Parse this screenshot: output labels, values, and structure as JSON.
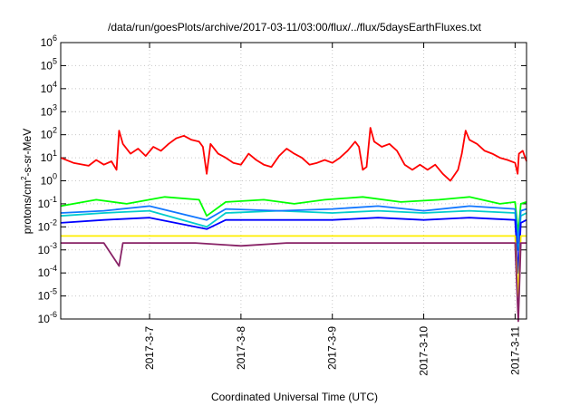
{
  "chart_data": {
    "type": "line",
    "title": "/data/run/goesPlots/archive/2017-03-11/03:00/flux/../flux/5daysEarthFluxes.txt",
    "xlabel": "Coordinated Universal Time (UTC)",
    "ylabel_parts": {
      "pre": "protons/cm",
      "sup": "2",
      "post": "-s-sr-MeV"
    },
    "y_scale": "log",
    "ylim": [
      1e-06,
      1000000.0
    ],
    "xlim": [
      "2017-03-06T00:40",
      "2017-03-11T03:00"
    ],
    "grid": true,
    "legend": "none",
    "x_ticks": [
      {
        "date": "2017-03-07",
        "label": "2017-3-7"
      },
      {
        "date": "2017-03-08",
        "label": "2017-3-8"
      },
      {
        "date": "2017-03-09",
        "label": "2017-3-9"
      },
      {
        "date": "2017-03-10",
        "label": "2017-3-10"
      },
      {
        "date": "2017-03-11",
        "label": "2017-3-11"
      }
    ],
    "y_ticks": [
      {
        "value": 1e-06,
        "base": "10",
        "exp": "-6"
      },
      {
        "value": 1e-05,
        "base": "10",
        "exp": "-5"
      },
      {
        "value": 0.0001,
        "base": "10",
        "exp": "-4"
      },
      {
        "value": 0.001,
        "base": "10",
        "exp": "-3"
      },
      {
        "value": 0.01,
        "base": "10",
        "exp": "-2"
      },
      {
        "value": 0.1,
        "base": "10",
        "exp": "-1"
      },
      {
        "value": 1,
        "base": "10",
        "exp": "0"
      },
      {
        "value": 10,
        "base": "10",
        "exp": "1"
      },
      {
        "value": 100,
        "base": "10",
        "exp": "2"
      },
      {
        "value": 1000,
        "base": "10",
        "exp": "3"
      },
      {
        "value": 10000,
        "base": "10",
        "exp": "4"
      },
      {
        "value": 100000,
        "base": "10",
        "exp": "5"
      },
      {
        "value": 1000000,
        "base": "10",
        "exp": "6"
      }
    ],
    "series": [
      {
        "color": "#ff0000",
        "points": [
          [
            "2017-03-06T00:40",
            10
          ],
          [
            "2017-03-06T04:00",
            6
          ],
          [
            "2017-03-06T08:00",
            4.5
          ],
          [
            "2017-03-06T10:00",
            8
          ],
          [
            "2017-03-06T12:00",
            5
          ],
          [
            "2017-03-06T14:00",
            7
          ],
          [
            "2017-03-06T15:20",
            3
          ],
          [
            "2017-03-06T16:00",
            150
          ],
          [
            "2017-03-06T17:00",
            40
          ],
          [
            "2017-03-06T19:00",
            15
          ],
          [
            "2017-03-06T21:00",
            25
          ],
          [
            "2017-03-06T23:00",
            12
          ],
          [
            "2017-03-07T01:00",
            30
          ],
          [
            "2017-03-07T03:00",
            20
          ],
          [
            "2017-03-07T05:00",
            40
          ],
          [
            "2017-03-07T07:00",
            70
          ],
          [
            "2017-03-07T09:00",
            90
          ],
          [
            "2017-03-07T11:00",
            60
          ],
          [
            "2017-03-07T13:00",
            50
          ],
          [
            "2017-03-07T14:00",
            30
          ],
          [
            "2017-03-07T15:00",
            2
          ],
          [
            "2017-03-07T16:00",
            40
          ],
          [
            "2017-03-07T18:00",
            15
          ],
          [
            "2017-03-07T20:00",
            10
          ],
          [
            "2017-03-07T22:00",
            6
          ],
          [
            "2017-03-08T00:00",
            5
          ],
          [
            "2017-03-08T02:00",
            15
          ],
          [
            "2017-03-08T04:00",
            8
          ],
          [
            "2017-03-08T06:00",
            5
          ],
          [
            "2017-03-08T08:00",
            4
          ],
          [
            "2017-03-08T10:00",
            12
          ],
          [
            "2017-03-08T12:00",
            25
          ],
          [
            "2017-03-08T14:00",
            15
          ],
          [
            "2017-03-08T16:00",
            10
          ],
          [
            "2017-03-08T18:00",
            5
          ],
          [
            "2017-03-08T20:00",
            6
          ],
          [
            "2017-03-08T22:00",
            8
          ],
          [
            "2017-03-09T00:00",
            6
          ],
          [
            "2017-03-09T02:00",
            10
          ],
          [
            "2017-03-09T04:00",
            20
          ],
          [
            "2017-03-09T06:00",
            50
          ],
          [
            "2017-03-09T07:00",
            30
          ],
          [
            "2017-03-09T08:00",
            3
          ],
          [
            "2017-03-09T09:00",
            4
          ],
          [
            "2017-03-09T10:00",
            200
          ],
          [
            "2017-03-09T11:00",
            50
          ],
          [
            "2017-03-09T13:00",
            30
          ],
          [
            "2017-03-09T15:00",
            40
          ],
          [
            "2017-03-09T17:00",
            20
          ],
          [
            "2017-03-09T19:00",
            5
          ],
          [
            "2017-03-09T21:00",
            3
          ],
          [
            "2017-03-09T23:00",
            5
          ],
          [
            "2017-03-10T01:00",
            3
          ],
          [
            "2017-03-10T03:00",
            5
          ],
          [
            "2017-03-10T05:00",
            2
          ],
          [
            "2017-03-10T07:00",
            1
          ],
          [
            "2017-03-10T09:00",
            3
          ],
          [
            "2017-03-10T10:00",
            15
          ],
          [
            "2017-03-10T11:00",
            150
          ],
          [
            "2017-03-10T12:00",
            60
          ],
          [
            "2017-03-10T14:00",
            40
          ],
          [
            "2017-03-10T16:00",
            20
          ],
          [
            "2017-03-10T18:00",
            15
          ],
          [
            "2017-03-10T20:00",
            10
          ],
          [
            "2017-03-10T22:00",
            8
          ],
          [
            "2017-03-11T00:00",
            6
          ],
          [
            "2017-03-11T00:40",
            2
          ],
          [
            "2017-03-11T01:00",
            15
          ],
          [
            "2017-03-11T02:00",
            20
          ],
          [
            "2017-03-11T03:00",
            7
          ]
        ]
      },
      {
        "color": "#00ff00",
        "points": [
          [
            "2017-03-06T00:40",
            0.08
          ],
          [
            "2017-03-06T10:00",
            0.15
          ],
          [
            "2017-03-06T18:00",
            0.1
          ],
          [
            "2017-03-07T04:00",
            0.2
          ],
          [
            "2017-03-07T13:00",
            0.15
          ],
          [
            "2017-03-07T15:00",
            0.03
          ],
          [
            "2017-03-07T20:00",
            0.12
          ],
          [
            "2017-03-08T06:00",
            0.15
          ],
          [
            "2017-03-08T14:00",
            0.1
          ],
          [
            "2017-03-08T22:00",
            0.15
          ],
          [
            "2017-03-09T08:00",
            0.2
          ],
          [
            "2017-03-09T18:00",
            0.12
          ],
          [
            "2017-03-10T04:00",
            0.15
          ],
          [
            "2017-03-10T12:00",
            0.2
          ],
          [
            "2017-03-10T20:00",
            0.1
          ],
          [
            "2017-03-11T00:00",
            0.12
          ],
          [
            "2017-03-11T00:50",
            0.005
          ],
          [
            "2017-03-11T01:30",
            0.1
          ],
          [
            "2017-03-11T03:00",
            0.12
          ]
        ]
      },
      {
        "color": "#00cccc",
        "points": [
          [
            "2017-03-06T00:40",
            0.03
          ],
          [
            "2017-03-06T12:00",
            0.04
          ],
          [
            "2017-03-07T00:00",
            0.05
          ],
          [
            "2017-03-07T15:00",
            0.01
          ],
          [
            "2017-03-07T20:00",
            0.04
          ],
          [
            "2017-03-08T10:00",
            0.05
          ],
          [
            "2017-03-09T00:00",
            0.04
          ],
          [
            "2017-03-09T12:00",
            0.05
          ],
          [
            "2017-03-10T00:00",
            0.04
          ],
          [
            "2017-03-10T12:00",
            0.05
          ],
          [
            "2017-03-11T00:00",
            0.04
          ],
          [
            "2017-03-11T00:50",
            0.001
          ],
          [
            "2017-03-11T01:30",
            0.03
          ],
          [
            "2017-03-11T03:00",
            0.04
          ]
        ]
      },
      {
        "color": "#1177ff",
        "points": [
          [
            "2017-03-06T00:40",
            0.04
          ],
          [
            "2017-03-06T12:00",
            0.05
          ],
          [
            "2017-03-07T00:00",
            0.08
          ],
          [
            "2017-03-07T15:00",
            0.02
          ],
          [
            "2017-03-07T20:00",
            0.06
          ],
          [
            "2017-03-08T10:00",
            0.05
          ],
          [
            "2017-03-09T00:00",
            0.06
          ],
          [
            "2017-03-09T12:00",
            0.08
          ],
          [
            "2017-03-10T00:00",
            0.05
          ],
          [
            "2017-03-10T12:00",
            0.08
          ],
          [
            "2017-03-11T00:00",
            0.06
          ],
          [
            "2017-03-11T00:50",
            0.002
          ],
          [
            "2017-03-11T01:30",
            0.05
          ],
          [
            "2017-03-11T03:00",
            0.06
          ]
        ]
      },
      {
        "color": "#0000ff",
        "points": [
          [
            "2017-03-06T00:40",
            0.015
          ],
          [
            "2017-03-06T12:00",
            0.02
          ],
          [
            "2017-03-07T00:00",
            0.025
          ],
          [
            "2017-03-07T15:00",
            0.008
          ],
          [
            "2017-03-07T20:00",
            0.02
          ],
          [
            "2017-03-08T10:00",
            0.02
          ],
          [
            "2017-03-09T00:00",
            0.02
          ],
          [
            "2017-03-09T12:00",
            0.025
          ],
          [
            "2017-03-10T00:00",
            0.02
          ],
          [
            "2017-03-10T12:00",
            0.025
          ],
          [
            "2017-03-11T00:00",
            0.02
          ],
          [
            "2017-03-11T00:50",
            0.0001
          ],
          [
            "2017-03-11T01:30",
            0.015
          ],
          [
            "2017-03-11T03:00",
            0.02
          ]
        ]
      },
      {
        "color": "#ffee00",
        "points": [
          [
            "2017-03-06T00:40",
            0.004
          ],
          [
            "2017-03-07T00:00",
            0.004
          ],
          [
            "2017-03-08T00:00",
            0.004
          ],
          [
            "2017-03-09T00:00",
            0.004
          ],
          [
            "2017-03-10T00:00",
            0.004
          ],
          [
            "2017-03-11T00:00",
            0.004
          ],
          [
            "2017-03-11T00:50",
            1e-05
          ],
          [
            "2017-03-11T01:30",
            0.004
          ],
          [
            "2017-03-11T03:00",
            0.004
          ]
        ]
      },
      {
        "color": "#882266",
        "points": [
          [
            "2017-03-06T00:40",
            0.002
          ],
          [
            "2017-03-06T12:00",
            0.002
          ],
          [
            "2017-03-06T16:00",
            0.0002
          ],
          [
            "2017-03-06T17:00",
            0.002
          ],
          [
            "2017-03-07T12:00",
            0.002
          ],
          [
            "2017-03-08T00:00",
            0.0015
          ],
          [
            "2017-03-08T12:00",
            0.002
          ],
          [
            "2017-03-09T12:00",
            0.002
          ],
          [
            "2017-03-10T12:00",
            0.002
          ],
          [
            "2017-03-11T00:00",
            0.002
          ],
          [
            "2017-03-11T00:50",
            8e-07
          ],
          [
            "2017-03-11T01:30",
            0.002
          ],
          [
            "2017-03-11T03:00",
            0.002
          ]
        ]
      }
    ]
  }
}
